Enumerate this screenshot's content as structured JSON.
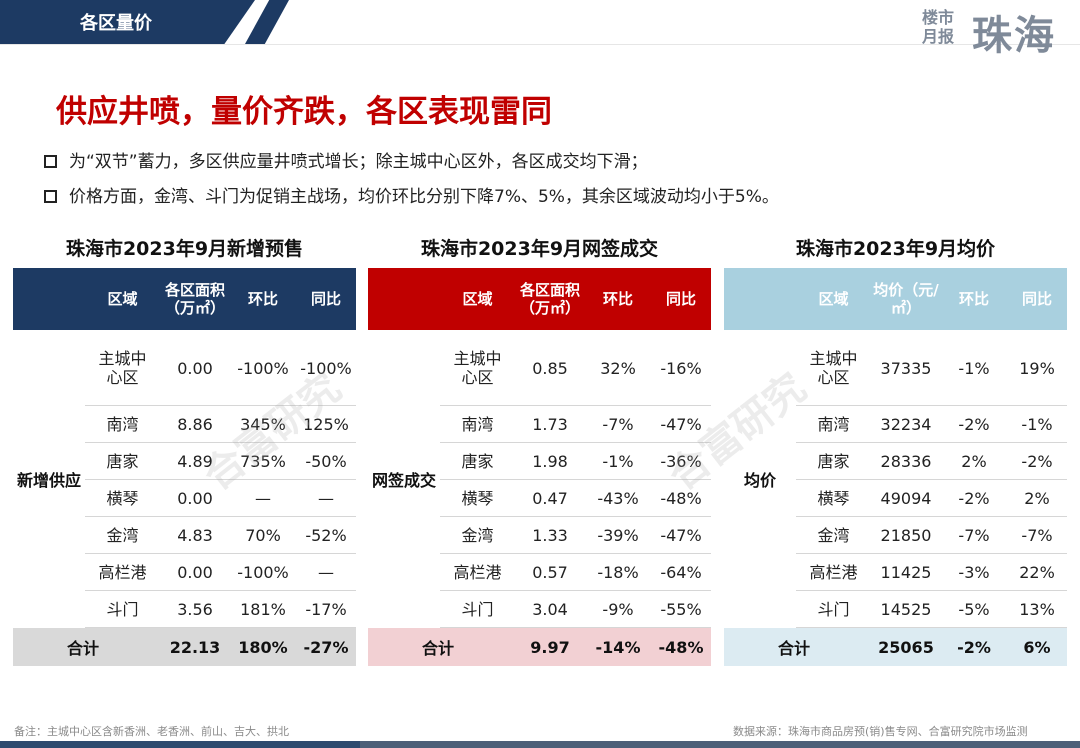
{
  "header": {
    "section_title": "各区量价",
    "brand_small": "楼市月报",
    "brand_big": "珠海"
  },
  "headline": "供应井喷，量价齐跌，各区表现雷同",
  "bullets": [
    "为“双节”蓄力，多区供应量井喷式增长；除主城中心区外，各区成交均下滑；",
    "价格方面，金湾、斗门为促销主战场，均价环比分别下降7%、5%，其余区域波动均小于5%。"
  ],
  "watermark": "合富研究",
  "tables": [
    {
      "title": "珠海市2023年9月新增预售",
      "headers": [
        "区域",
        "各区面积（万㎡）",
        "环比",
        "同比"
      ],
      "side_label": "新增供应",
      "rows": [
        [
          "主城中心区",
          "0.00",
          "-100%",
          "-100%"
        ],
        [
          "南湾",
          "8.86",
          "345%",
          "125%"
        ],
        [
          "唐家",
          "4.89",
          "735%",
          "-50%"
        ],
        [
          "横琴",
          "0.00",
          "—",
          "—"
        ],
        [
          "金湾",
          "4.83",
          "70%",
          "-52%"
        ],
        [
          "高栏港",
          "0.00",
          "-100%",
          "—"
        ],
        [
          "斗门",
          "3.56",
          "181%",
          "-17%"
        ]
      ],
      "total": [
        "合计",
        "22.13",
        "180%",
        "-27%"
      ]
    },
    {
      "title": "珠海市2023年9月网签成交",
      "headers": [
        "区域",
        "各区面积（万㎡）",
        "环比",
        "同比"
      ],
      "side_label": "网签成交",
      "rows": [
        [
          "主城中心区",
          "0.85",
          "32%",
          "-16%"
        ],
        [
          "南湾",
          "1.73",
          "-7%",
          "-47%"
        ],
        [
          "唐家",
          "1.98",
          "-1%",
          "-36%"
        ],
        [
          "横琴",
          "0.47",
          "-43%",
          "-48%"
        ],
        [
          "金湾",
          "1.33",
          "-39%",
          "-47%"
        ],
        [
          "高栏港",
          "0.57",
          "-18%",
          "-64%"
        ],
        [
          "斗门",
          "3.04",
          "-9%",
          "-55%"
        ]
      ],
      "total": [
        "合计",
        "9.97",
        "-14%",
        "-48%"
      ]
    },
    {
      "title": "珠海市2023年9月均价",
      "headers": [
        "区域",
        "均价（元/㎡）",
        "环比",
        "同比"
      ],
      "side_label": "均价",
      "rows": [
        [
          "主城中心区",
          "37335",
          "-1%",
          "19%"
        ],
        [
          "南湾",
          "32234",
          "-2%",
          "-1%"
        ],
        [
          "唐家",
          "28336",
          "2%",
          "-2%"
        ],
        [
          "横琴",
          "49094",
          "-2%",
          "2%"
        ],
        [
          "金湾",
          "21850",
          "-7%",
          "-7%"
        ],
        [
          "高栏港",
          "11425",
          "-3%",
          "22%"
        ],
        [
          "斗门",
          "14525",
          "-5%",
          "13%"
        ]
      ],
      "total": [
        "合计",
        "25065",
        "-2%",
        "6%"
      ]
    }
  ],
  "footnote": "备注：主城中心区含新香洲、老香洲、前山、吉大、拱北",
  "source": "数据来源：珠海市商品房预(销)售专网、合富研究院市场监测"
}
